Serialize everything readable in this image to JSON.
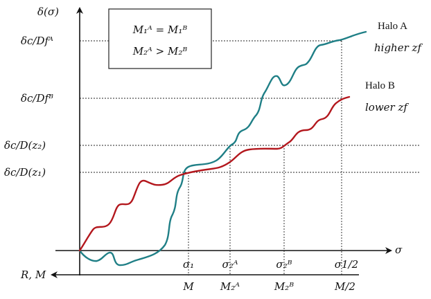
{
  "figure": {
    "y_axis_label": "δ(σ)",
    "x_axis_label": "σ",
    "lower_axis_label": "R, M",
    "legend_lines": [
      "M₁ᴬ = M₁ᴮ",
      "M₂ᴬ > M₂ᴮ"
    ],
    "y_tick_labels": [
      "δc/Dfᴬ",
      "δc/Dfᴮ",
      "δc/D(z₂)",
      "δc/D(z₁)"
    ],
    "sigma_tick_labels": [
      "σ₁",
      "σ₂ᴬ",
      "σ₂ᴮ",
      "σ1/2"
    ],
    "mass_tick_labels": [
      "M",
      "M₂ᴬ",
      "M₂ᴮ",
      "M/2"
    ],
    "halo_a": {
      "name": "Halo A",
      "note": "higher zf",
      "color": "#1f7f86"
    },
    "halo_b": {
      "name": "Halo B",
      "note": "lower zf",
      "color": "#b3171d"
    }
  }
}
